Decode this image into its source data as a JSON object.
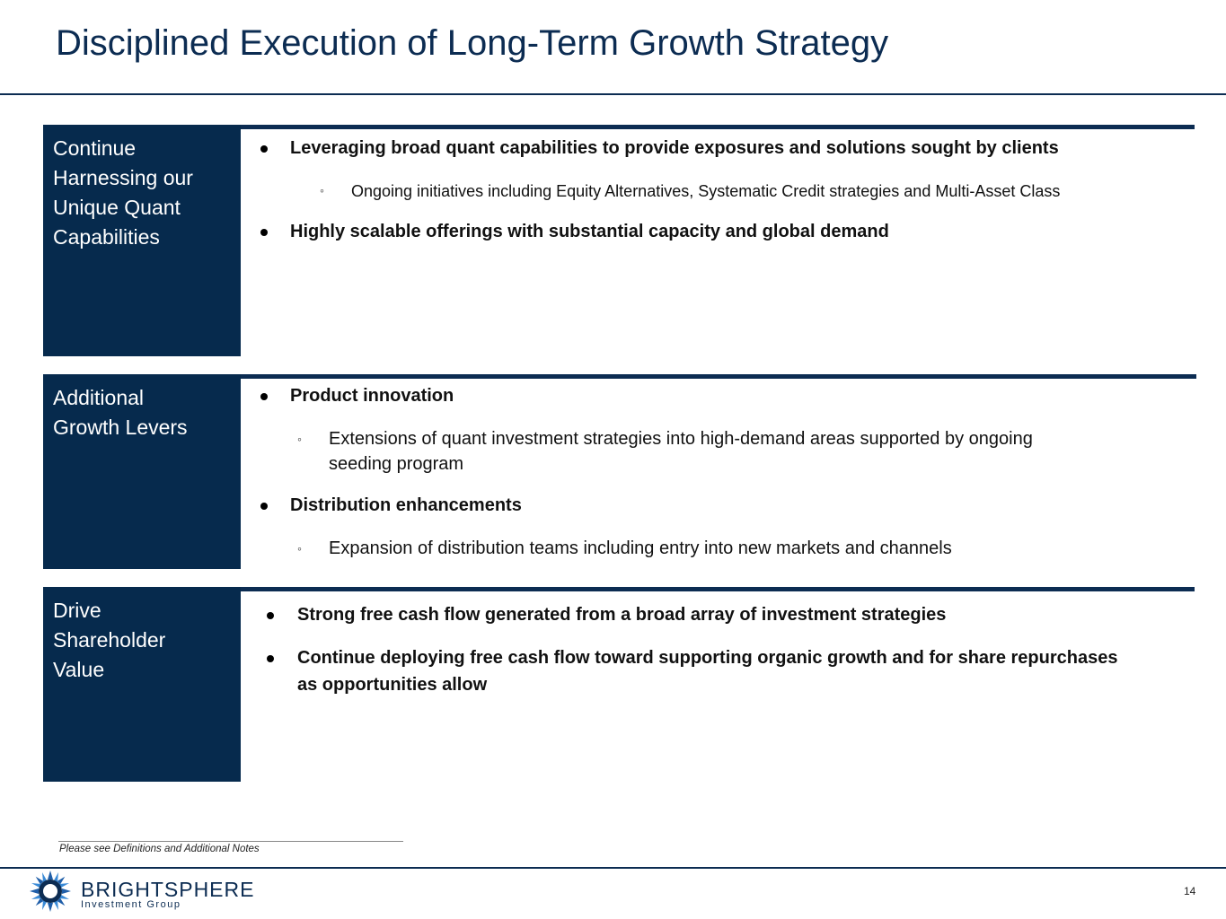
{
  "page": {
    "title": "Disciplined Execution of Long-Term Growth Strategy",
    "page_number": "14",
    "footnote": "Please see Definitions and Additional Notes"
  },
  "logo": {
    "name": "BRIGHTSPHERE",
    "subtitle": "Investment Group",
    "icon": "brightsphere-sun-icon"
  },
  "colors": {
    "navy": "#062a4d",
    "title": "#0c2c52"
  },
  "sections": [
    {
      "label": "Continue Harnessing our Unique Quant Capabilities",
      "label_lines": [
        "Continue",
        "Harnessing our",
        "Unique Quant",
        "Capabilities"
      ],
      "bullets": [
        "Leveraging broad quant capabilities to provide exposures and solutions sought by clients",
        "Ongoing initiatives including Equity Alternatives, Systematic Credit strategies and Multi-Asset Class",
        "Highly scalable offerings with substantial capacity and global demand"
      ]
    },
    {
      "label": "Additional Growth Levers",
      "label_lines": [
        "Additional",
        "Growth Levers"
      ],
      "bullets": [
        "Product innovation",
        "Extensions of quant investment strategies into high-demand areas supported by ongoing",
        "seeding program",
        "Distribution enhancements",
        "Expansion of distribution teams including entry into new markets and channels"
      ]
    },
    {
      "label": "Drive Shareholder Value",
      "label_lines": [
        "Drive",
        "Shareholder",
        "Value"
      ],
      "bullets": [
        "Strong free cash flow generated from a broad array of investment strategies",
        "Continue deploying free cash flow toward supporting organic growth and for share repurchases",
        "as opportunities allow"
      ]
    }
  ]
}
